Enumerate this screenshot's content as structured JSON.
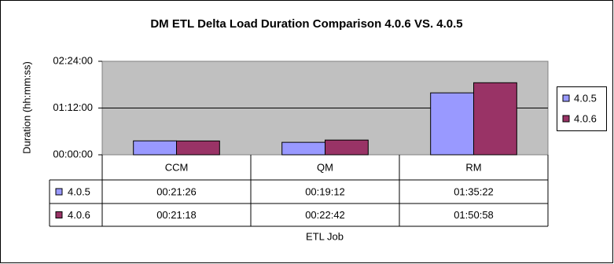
{
  "chart_data": {
    "type": "bar",
    "title": "DM ETL Delta Load Duration  Comparison 4.0.6 VS. 4.0.5",
    "x_label": "ETL Job",
    "y_label": "Duration (hh:mm:ss)",
    "categories": [
      "CCM",
      "QM",
      "RM"
    ],
    "series": [
      {
        "name": "4.0.5",
        "color": "#9999ff",
        "values": [
          1286,
          1152,
          5722
        ],
        "value_labels": [
          "00:21:26",
          "00:19:12",
          "01:35:22"
        ]
      },
      {
        "name": "4.0.6",
        "color": "#993366",
        "values": [
          1278,
          1362,
          6658
        ],
        "value_labels": [
          "00:21:18",
          "00:22:42",
          "01:50:58"
        ]
      }
    ],
    "ylim": [
      0,
      8640
    ],
    "yticks": [
      {
        "value": 0,
        "label": "00:00:00"
      },
      {
        "value": 4320,
        "label": "01:12:00"
      },
      {
        "value": 8640,
        "label": "02:24:00"
      }
    ],
    "grid": true,
    "legend": "right"
  }
}
